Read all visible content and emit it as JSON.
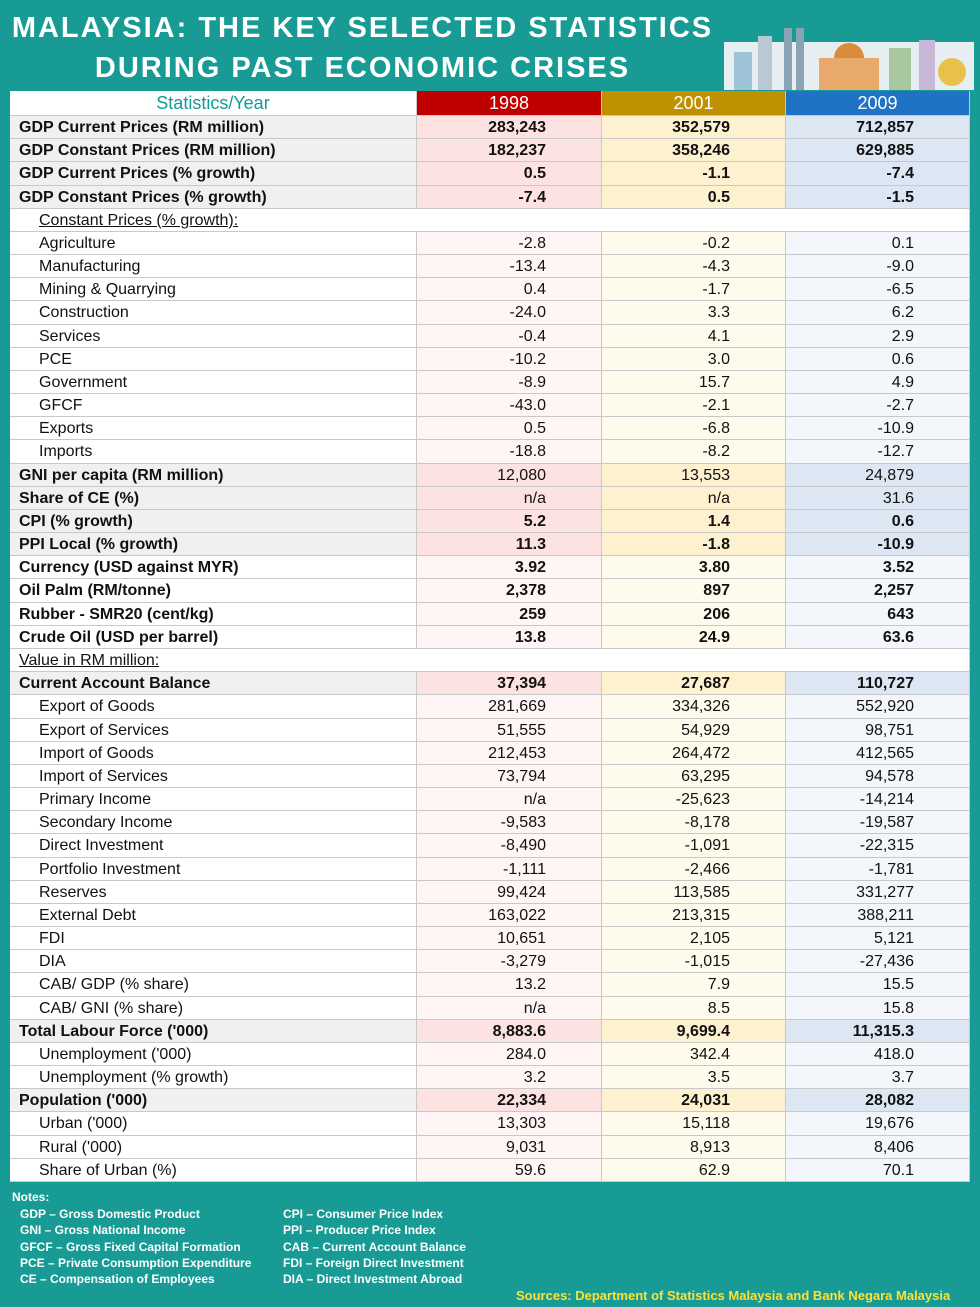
{
  "header": {
    "title_lines": [
      "MALAYSIA: THE KEY SELECTED STATISTICS",
      "DURING PAST ECONOMIC CRISES"
    ]
  },
  "table": {
    "columns": [
      "Statistics/Year",
      "1998",
      "2001",
      "2009"
    ],
    "rows": [
      [
        "GDP Current Prices (RM million)",
        "283,243",
        "352,579",
        "712,857"
      ],
      [
        "GDP Constant Prices (RM million)",
        "182,237",
        "358,246",
        "629,885"
      ],
      [
        "GDP Current Prices (% growth)",
        "0.5",
        "-1.1",
        "-7.4"
      ],
      [
        "GDP Constant Prices (% growth)",
        "-7.4",
        "0.5",
        "-1.5"
      ],
      [
        "Constant Prices (% growth):"
      ],
      [
        "Agriculture",
        "-2.8",
        "-0.2",
        "0.1"
      ],
      [
        "Manufacturing",
        "-13.4",
        "-4.3",
        "-9.0"
      ],
      [
        "Mining & Quarrying",
        "0.4",
        "-1.7",
        "-6.5"
      ],
      [
        "Construction",
        "-24.0",
        "3.3",
        "6.2"
      ],
      [
        "Services",
        "-0.4",
        "4.1",
        "2.9"
      ],
      [
        "PCE",
        "-10.2",
        "3.0",
        "0.6"
      ],
      [
        "Government",
        "-8.9",
        "15.7",
        "4.9"
      ],
      [
        "GFCF",
        "-43.0",
        "-2.1",
        "-2.7"
      ],
      [
        "Exports",
        "0.5",
        "-6.8",
        "-10.9"
      ],
      [
        "Imports",
        "-18.8",
        "-8.2",
        "-12.7"
      ],
      [
        "GNI per capita (RM million)",
        "12,080",
        "13,553",
        "24,879"
      ],
      [
        "Share of CE (%)",
        "n/a",
        "n/a",
        "31.6"
      ],
      [
        "CPI (% growth)",
        "5.2",
        "1.4",
        "0.6"
      ],
      [
        "PPI Local (% growth)",
        "11.3",
        "-1.8",
        "-10.9"
      ],
      [
        "Currency (USD against MYR)",
        "3.92",
        "3.80",
        "3.52"
      ],
      [
        "Oil Palm (RM/tonne)",
        "2,378",
        "897",
        "2,257"
      ],
      [
        "Rubber - SMR20 (cent/kg)",
        "259",
        "206",
        "643"
      ],
      [
        "Crude Oil (USD per barrel)",
        "13.8",
        "24.9",
        "63.6"
      ],
      [
        "Value in RM million:"
      ],
      [
        "Current Account Balance",
        "37,394",
        "27,687",
        "110,727"
      ],
      [
        "Export of Goods",
        "281,669",
        "334,326",
        "552,920"
      ],
      [
        "Export of Services",
        "51,555",
        "54,929",
        "98,751"
      ],
      [
        "Import of Goods",
        "212,453",
        "264,472",
        "412,565"
      ],
      [
        "Import of Services",
        "73,794",
        "63,295",
        "94,578"
      ],
      [
        "Primary Income",
        "n/a",
        "-25,623",
        "-14,214"
      ],
      [
        "Secondary Income",
        "-9,583",
        "-8,178",
        "-19,587"
      ],
      [
        "Direct Investment",
        "-8,490",
        "-1,091",
        "-22,315"
      ],
      [
        "Portfolio Investment",
        "-1,111",
        "-2,466",
        "-1,781"
      ],
      [
        "Reserves",
        "99,424",
        "113,585",
        "331,277"
      ],
      [
        "External Debt",
        "163,022",
        "213,315",
        "388,211"
      ],
      [
        "FDI",
        "10,651",
        "2,105",
        "5,121"
      ],
      [
        "DIA",
        "-3,279",
        "-1,015",
        "-27,436"
      ],
      [
        "CAB/ GDP (% share)",
        "13.2",
        "7.9",
        "15.5"
      ],
      [
        "CAB/ GNI (% share)",
        "n/a",
        "8.5",
        "15.8"
      ],
      [
        "Total Labour Force ('000)",
        "8,883.6",
        "9,699.4",
        "11,315.3"
      ],
      [
        "Unemployment ('000)",
        "284.0",
        "342.4",
        "418.0"
      ],
      [
        "Unemployment (% growth)",
        "3.2",
        "3.5",
        "3.7"
      ],
      [
        "Population ('000)",
        "22,334",
        "24,031",
        "28,082"
      ],
      [
        "Urban ('000)",
        "13,303",
        "15,118",
        "19,676"
      ],
      [
        "Rural ('000)",
        "9,031",
        "8,913",
        "8,406"
      ],
      [
        "Share of Urban (%)",
        "59.6",
        "62.9",
        "70.1"
      ]
    ]
  },
  "notes": {
    "heading": "Notes:",
    "left": [
      "GDP – Gross Domestic Product",
      "GNI – Gross National Income",
      "GFCF – Gross Fixed Capital Formation",
      "PCE – Private Consumption Expenditure",
      "CE – Compensation of Employees"
    ],
    "right": [
      "CPI – Consumer Price Index",
      "PPI – Producer Price Index",
      "CAB – Current Account Balance",
      "FDI – Foreign Direct Investment",
      "DIA – Direct Investment Abroad"
    ]
  },
  "source": "Sources: Department of Statistics Malaysia and Bank Negara Malaysia"
}
